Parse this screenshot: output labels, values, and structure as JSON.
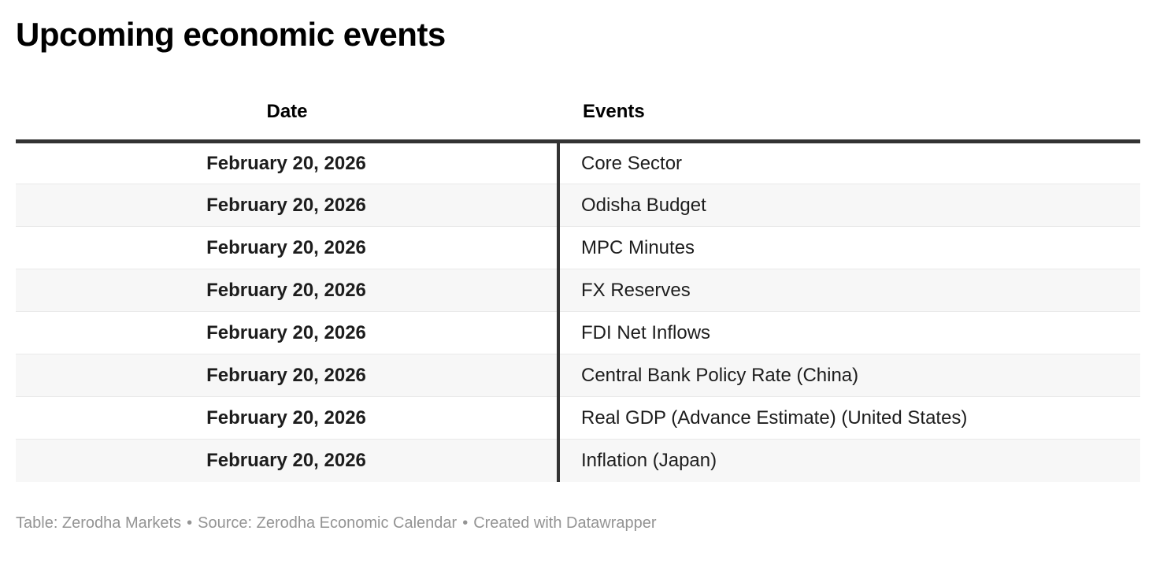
{
  "chart_data": {
    "type": "table",
    "title": "Upcoming economic events",
    "columns": [
      "Date",
      "Events"
    ],
    "rows": [
      [
        "February 20, 2026",
        "Core Sector"
      ],
      [
        "February 20, 2026",
        "Odisha Budget"
      ],
      [
        "February 20, 2026",
        "MPC Minutes"
      ],
      [
        "February 20, 2026",
        "FX Reserves"
      ],
      [
        "February 20, 2026",
        "FDI Net Inflows"
      ],
      [
        "February 20, 2026",
        "Central Bank Policy Rate (China)"
      ],
      [
        "February 20, 2026",
        "Real GDP (Advance Estimate) (United States)"
      ],
      [
        "February 20, 2026",
        "Inflation (Japan)"
      ]
    ],
    "layout_hints": {
      "date_column_align": "center",
      "events_column_align": "left",
      "alternating_row_shading": true,
      "header_rule": "thick-dark",
      "column_divider": "vertical-dark-line"
    }
  },
  "footer": {
    "table_credit": "Table: Zerodha Markets",
    "source_credit": "Source: Zerodha Economic Calendar",
    "created_credit": "Created with Datawrapper",
    "separator": "•"
  },
  "colors": {
    "border_dark": "#333333",
    "row_alt": "#f7f7f7",
    "row_separator": "#e9e9e9",
    "text": "#1d1d1d",
    "title_text": "#000000",
    "footer_text": "#949494"
  }
}
